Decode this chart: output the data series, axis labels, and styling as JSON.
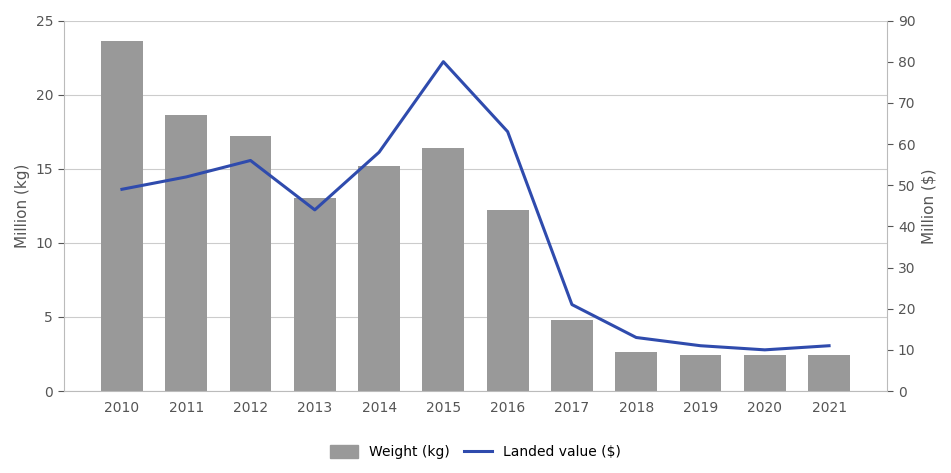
{
  "years": [
    2010,
    2011,
    2012,
    2013,
    2014,
    2015,
    2016,
    2017,
    2018,
    2019,
    2020,
    2021
  ],
  "weight_kg": [
    23.6,
    18.6,
    17.2,
    13.0,
    15.2,
    16.4,
    12.2,
    4.8,
    2.6,
    2.4,
    2.4,
    2.4
  ],
  "landed_value": [
    49,
    52,
    56,
    44,
    58,
    80,
    63,
    21,
    13,
    11,
    10,
    11
  ],
  "bar_color": "#999999",
  "line_color": "#2F4BAD",
  "ylabel_left": "Million (kg)",
  "ylabel_right": "Million ($)",
  "ylim_left": [
    0,
    25
  ],
  "ylim_right": [
    0,
    90
  ],
  "yticks_left": [
    0,
    5,
    10,
    15,
    20,
    25
  ],
  "yticks_right": [
    0,
    10,
    20,
    30,
    40,
    50,
    60,
    70,
    80,
    90
  ],
  "legend_weight": "Weight (kg)",
  "legend_value": "Landed value ($)",
  "background_color": "#ffffff",
  "grid_color": "#cccccc",
  "bar_width": 0.65
}
